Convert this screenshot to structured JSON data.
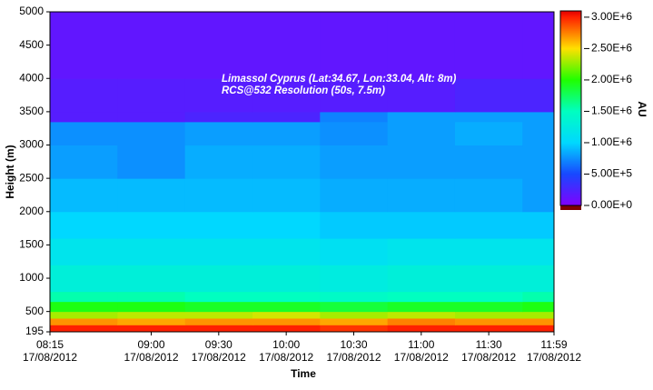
{
  "chart_data": {
    "type": "heatmap",
    "annotations": [
      "Limassol Cyprus (Lat:34.67, Lon:33.04, Alt: 8m)",
      "RCS@532 Resolution (50s, 7.5m)"
    ],
    "x_label": "Time",
    "y_label": "Height (m)",
    "colorbar_label": "AU",
    "xlim": [
      "2012-08-17T08:15",
      "2012-08-17T11:59"
    ],
    "xticks": [
      {
        "value": "2012-08-17T08:15",
        "label": [
          "08:15",
          "17/08/2012"
        ]
      },
      {
        "value": "2012-08-17T09:00",
        "label": [
          "09:00",
          "17/08/2012"
        ]
      },
      {
        "value": "2012-08-17T09:30",
        "label": [
          "09:30",
          "17/08/2012"
        ]
      },
      {
        "value": "2012-08-17T10:00",
        "label": [
          "10:00",
          "17/08/2012"
        ]
      },
      {
        "value": "2012-08-17T10:30",
        "label": [
          "10:30",
          "17/08/2012"
        ]
      },
      {
        "value": "2012-08-17T11:00",
        "label": [
          "11:00",
          "17/08/2012"
        ]
      },
      {
        "value": "2012-08-17T11:30",
        "label": [
          "11:30",
          "17/08/2012"
        ]
      },
      {
        "value": "2012-08-17T11:59",
        "label": [
          "11:59",
          "17/08/2012"
        ]
      }
    ],
    "ylim": [
      195,
      5000
    ],
    "yticks": [
      195,
      500,
      1000,
      1500,
      2000,
      2500,
      3000,
      3500,
      4000,
      4500,
      5000
    ],
    "x": [
      "2012-08-17T08:15",
      "2012-08-17T08:45",
      "2012-08-17T09:15",
      "2012-08-17T09:45",
      "2012-08-17T10:15",
      "2012-08-17T10:45",
      "2012-08-17T11:15",
      "2012-08-17T11:45",
      "2012-08-17T11:59"
    ],
    "y": [
      195,
      300,
      400,
      500,
      650,
      800,
      1200,
      1600,
      2000,
      2500,
      3000,
      3350,
      3500,
      4000,
      5000
    ],
    "values": [
      [
        3000000,
        3000000,
        3000000,
        3000000,
        2950000,
        3000000,
        3000000,
        3000000
      ],
      [
        2700000,
        2650000,
        2700000,
        2700000,
        2650000,
        2750000,
        2700000,
        2700000
      ],
      [
        2300000,
        2350000,
        2350000,
        2400000,
        2300000,
        2350000,
        2300000,
        2300000
      ],
      [
        1950000,
        1950000,
        1900000,
        1900000,
        1850000,
        1900000,
        1900000,
        1950000
      ],
      [
        1550000,
        1550000,
        1500000,
        1500000,
        1450000,
        1500000,
        1500000,
        1550000
      ],
      [
        1300000,
        1300000,
        1300000,
        1300000,
        1250000,
        1300000,
        1300000,
        1300000
      ],
      [
        1150000,
        1150000,
        1150000,
        1150000,
        1100000,
        1150000,
        1150000,
        1150000
      ],
      [
        1000000,
        1000000,
        1000000,
        1000000,
        950000,
        950000,
        950000,
        950000
      ],
      [
        900000,
        900000,
        900000,
        900000,
        850000,
        850000,
        850000,
        800000
      ],
      [
        800000,
        750000,
        850000,
        850000,
        800000,
        800000,
        800000,
        800000
      ],
      [
        750000,
        750000,
        800000,
        800000,
        750000,
        800000,
        850000,
        800000
      ],
      [
        200000,
        200000,
        250000,
        250000,
        700000,
        800000,
        800000,
        800000
      ],
      [
        200000,
        200000,
        200000,
        200000,
        200000,
        200000,
        250000,
        250000
      ],
      [
        150000,
        150000,
        150000,
        150000,
        150000,
        150000,
        150000,
        150000
      ]
    ],
    "zlim": [
      0,
      3100000
    ],
    "zticks": [
      {
        "value": 3000000,
        "label": "3.00E+6"
      },
      {
        "value": 2500000,
        "label": "2.50E+6"
      },
      {
        "value": 2000000,
        "label": "2.00E+6"
      },
      {
        "value": 1500000,
        "label": "1.50E+6"
      },
      {
        "value": 1000000,
        "label": "1.00E+6"
      },
      {
        "value": 500000,
        "label": "5.00E+5"
      },
      {
        "value": 0,
        "label": "0.00E+0"
      }
    ],
    "colormap": [
      {
        "value": 0,
        "color": "#8000ff"
      },
      {
        "value": 500000,
        "color": "#1848ff"
      },
      {
        "value": 1000000,
        "color": "#00d8ff"
      },
      {
        "value": 1500000,
        "color": "#00ffc0"
      },
      {
        "value": 2000000,
        "color": "#20ff00"
      },
      {
        "value": 2500000,
        "color": "#ffe000"
      },
      {
        "value": 3000000,
        "color": "#ff2000"
      },
      {
        "value": 3100000,
        "color": "#e00000"
      }
    ]
  }
}
